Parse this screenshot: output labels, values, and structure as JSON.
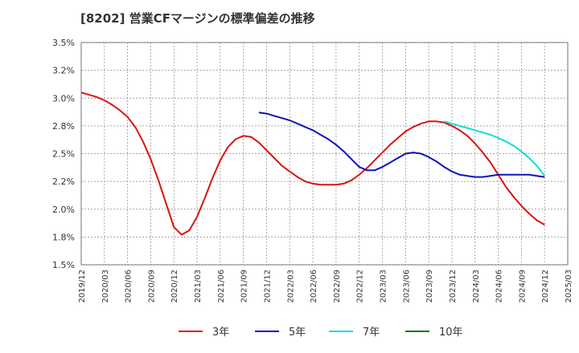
{
  "chart_data": {
    "type": "line",
    "title": "[8202]  営業CFマージンの標準偏差の推移",
    "xlabel": "",
    "ylabel": "",
    "ylim": [
      1.5,
      3.5
    ],
    "yticks": [
      "3.5%",
      "3.2%",
      "3.0%",
      "2.8%",
      "2.5%",
      "2.2%",
      "2.0%",
      "1.8%",
      "1.5%"
    ],
    "ytick_values": [
      3.5,
      3.25,
      3.0,
      2.75,
      2.5,
      2.25,
      2.0,
      1.75,
      1.5
    ],
    "xticks": [
      "2019/12",
      "2020/03",
      "2020/06",
      "2020/09",
      "2020/12",
      "2021/03",
      "2021/06",
      "2021/09",
      "2021/12",
      "2022/03",
      "2022/06",
      "2022/09",
      "2022/12",
      "2023/03",
      "2023/06",
      "2023/09",
      "2023/12",
      "2024/03",
      "2024/06",
      "2024/09",
      "2024/12",
      "2025/03"
    ],
    "grid": true,
    "legend_position": "bottom",
    "series": [
      {
        "name": "3年",
        "color": "#dd1111",
        "points": [
          [
            "2019/12",
            3.05
          ],
          [
            "2020/01",
            3.03
          ],
          [
            "2020/02",
            3.01
          ],
          [
            "2020/03",
            2.98
          ],
          [
            "2020/04",
            2.94
          ],
          [
            "2020/05",
            2.89
          ],
          [
            "2020/06",
            2.83
          ],
          [
            "2020/07",
            2.74
          ],
          [
            "2020/08",
            2.61
          ],
          [
            "2020/09",
            2.45
          ],
          [
            "2020/10",
            2.26
          ],
          [
            "2020/11",
            2.05
          ],
          [
            "2020/12",
            1.84
          ],
          [
            "2021/01",
            1.77
          ],
          [
            "2021/02",
            1.81
          ],
          [
            "2021/03",
            1.93
          ],
          [
            "2021/04",
            2.1
          ],
          [
            "2021/05",
            2.28
          ],
          [
            "2021/06",
            2.44
          ],
          [
            "2021/07",
            2.56
          ],
          [
            "2021/08",
            2.63
          ],
          [
            "2021/09",
            2.66
          ],
          [
            "2021/10",
            2.65
          ],
          [
            "2021/11",
            2.6
          ],
          [
            "2021/12",
            2.53
          ],
          [
            "2022/01",
            2.46
          ],
          [
            "2022/02",
            2.39
          ],
          [
            "2022/03",
            2.34
          ],
          [
            "2022/04",
            2.29
          ],
          [
            "2022/05",
            2.25
          ],
          [
            "2022/06",
            2.23
          ],
          [
            "2022/07",
            2.22
          ],
          [
            "2022/08",
            2.22
          ],
          [
            "2022/09",
            2.22
          ],
          [
            "2022/10",
            2.23
          ],
          [
            "2022/11",
            2.26
          ],
          [
            "2022/12",
            2.31
          ],
          [
            "2023/01",
            2.37
          ],
          [
            "2023/02",
            2.44
          ],
          [
            "2023/03",
            2.51
          ],
          [
            "2023/04",
            2.58
          ],
          [
            "2023/05",
            2.64
          ],
          [
            "2023/06",
            2.7
          ],
          [
            "2023/07",
            2.74
          ],
          [
            "2023/08",
            2.77
          ],
          [
            "2023/09",
            2.79
          ],
          [
            "2023/10",
            2.79
          ],
          [
            "2023/11",
            2.78
          ],
          [
            "2023/12",
            2.75
          ],
          [
            "2024/01",
            2.71
          ],
          [
            "2024/02",
            2.66
          ],
          [
            "2024/03",
            2.59
          ],
          [
            "2024/04",
            2.51
          ],
          [
            "2024/05",
            2.42
          ],
          [
            "2024/06",
            2.31
          ],
          [
            "2024/07",
            2.2
          ],
          [
            "2024/08",
            2.11
          ],
          [
            "2024/09",
            2.03
          ],
          [
            "2024/10",
            1.96
          ],
          [
            "2024/11",
            1.9
          ],
          [
            "2024/12",
            1.86
          ]
        ]
      },
      {
        "name": "5年",
        "color": "#1111bb",
        "points": [
          [
            "2021/11",
            2.87
          ],
          [
            "2021/12",
            2.86
          ],
          [
            "2022/01",
            2.84
          ],
          [
            "2022/02",
            2.82
          ],
          [
            "2022/03",
            2.8
          ],
          [
            "2022/04",
            2.77
          ],
          [
            "2022/05",
            2.74
          ],
          [
            "2022/06",
            2.71
          ],
          [
            "2022/07",
            2.67
          ],
          [
            "2022/08",
            2.63
          ],
          [
            "2022/09",
            2.58
          ],
          [
            "2022/10",
            2.52
          ],
          [
            "2022/11",
            2.45
          ],
          [
            "2022/12",
            2.38
          ],
          [
            "2023/01",
            2.35
          ],
          [
            "2023/02",
            2.35
          ],
          [
            "2023/03",
            2.38
          ],
          [
            "2023/04",
            2.42
          ],
          [
            "2023/05",
            2.46
          ],
          [
            "2023/06",
            2.5
          ],
          [
            "2023/07",
            2.51
          ],
          [
            "2023/08",
            2.5
          ],
          [
            "2023/09",
            2.47
          ],
          [
            "2023/10",
            2.43
          ],
          [
            "2023/11",
            2.38
          ],
          [
            "2023/12",
            2.34
          ],
          [
            "2024/01",
            2.31
          ],
          [
            "2024/02",
            2.3
          ],
          [
            "2024/03",
            2.29
          ],
          [
            "2024/04",
            2.29
          ],
          [
            "2024/05",
            2.3
          ],
          [
            "2024/06",
            2.31
          ],
          [
            "2024/07",
            2.31
          ],
          [
            "2024/08",
            2.31
          ],
          [
            "2024/09",
            2.31
          ],
          [
            "2024/10",
            2.31
          ],
          [
            "2024/11",
            2.3
          ],
          [
            "2024/12",
            2.29
          ]
        ]
      },
      {
        "name": "7年",
        "color": "#11dddd",
        "points": [
          [
            "2023/11",
            2.79
          ],
          [
            "2023/12",
            2.77
          ],
          [
            "2024/01",
            2.75
          ],
          [
            "2024/02",
            2.73
          ],
          [
            "2024/03",
            2.71
          ],
          [
            "2024/04",
            2.69
          ],
          [
            "2024/05",
            2.67
          ],
          [
            "2024/06",
            2.64
          ],
          [
            "2024/07",
            2.61
          ],
          [
            "2024/08",
            2.57
          ],
          [
            "2024/09",
            2.52
          ],
          [
            "2024/10",
            2.46
          ],
          [
            "2024/11",
            2.39
          ],
          [
            "2024/12",
            2.3
          ]
        ]
      },
      {
        "name": "10年",
        "color": "#117711",
        "points": []
      }
    ]
  }
}
